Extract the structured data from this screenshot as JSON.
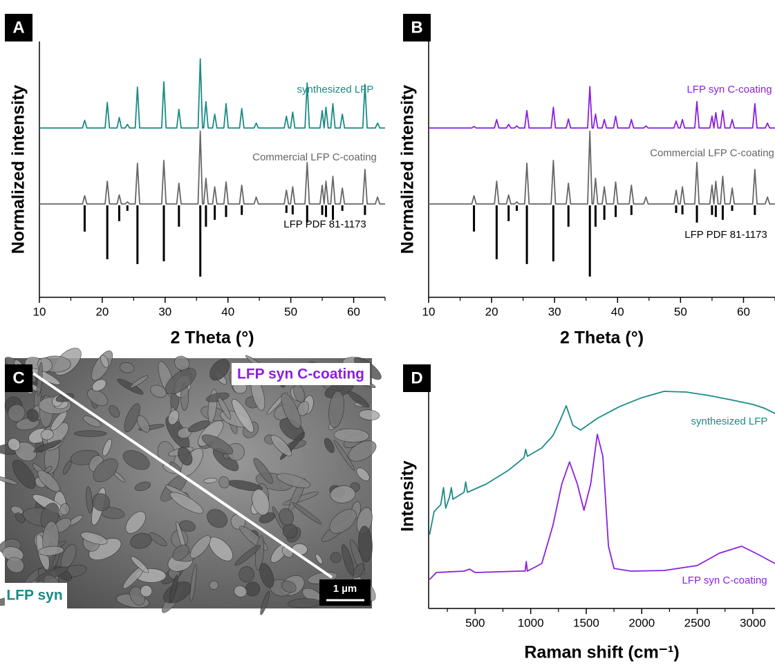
{
  "panel_labels": [
    "A",
    "B",
    "C",
    "D"
  ],
  "image": {
    "top_label": "LFP syn C-coating",
    "bottom_label": "LFP syn",
    "scale_bar": "1 µm"
  },
  "chart_data": [
    {
      "type": "line",
      "xlabel": "2 Theta (°)",
      "ylabel": "Normalized intensity",
      "xlim": [
        10,
        65
      ],
      "ylim": [
        0,
        100
      ],
      "xticks": [
        10,
        20,
        30,
        40,
        50,
        60
      ],
      "xticks_minor": [
        15,
        25,
        35,
        45,
        55,
        65
      ],
      "x": [
        10,
        16.85,
        17.2,
        17.55,
        20.45,
        20.8,
        21.15,
        22.35,
        22.7,
        23.05,
        23.65,
        24,
        24.35,
        25.25,
        25.6,
        25.95,
        29.45,
        29.8,
        30.15,
        31.85,
        32.2,
        32.55,
        35.25,
        35.6,
        35.95,
        36.15,
        36.5,
        36.85,
        37.55,
        37.9,
        38.25,
        39.35,
        39.7,
        40.05,
        41.85,
        42.2,
        42.55,
        44.15,
        44.5,
        44.85,
        48.95,
        49.3,
        49.65,
        49.95,
        50.3,
        50.65,
        52.25,
        52.6,
        52.95,
        54.65,
        55,
        55.3,
        55.6,
        55.95,
        56.35,
        56.7,
        57.05,
        57.85,
        58.2,
        58.55,
        61.45,
        61.8,
        62.15,
        63.45,
        63.8,
        64.15,
        65
      ],
      "series": [
        {
          "name": "synthesized LFP",
          "color": "#1b8a86",
          "values": [
            66.2,
            66.2,
            69.2,
            66.2,
            66.2,
            76.2,
            66.2,
            66.2,
            70.3,
            66.2,
            66.2,
            67.6,
            66.2,
            66.2,
            82.2,
            66.2,
            66.2,
            84.3,
            66.2,
            66.2,
            73.5,
            66.2,
            66.2,
            93.2,
            66.2,
            66.2,
            76.5,
            66.2,
            66.2,
            71.6,
            66.2,
            66.2,
            75.7,
            66.2,
            66.2,
            73.8,
            66.2,
            66.2,
            68.1,
            66.2,
            66.2,
            70.8,
            66.2,
            66.2,
            72.4,
            66.2,
            66.2,
            83.8,
            66.2,
            66.2,
            73.0,
            66.2,
            74.3,
            66.2,
            66.2,
            75.7,
            66.2,
            66.2,
            71.6,
            66.2,
            66.2,
            83.2,
            66.2,
            66.2,
            68.1,
            66.2,
            66.2
          ]
        },
        {
          "name": "Commercial LFP C-coating",
          "color": "#666666",
          "values": [
            36.5,
            36.5,
            39.7,
            36.5,
            36.5,
            45.4,
            36.5,
            36.5,
            40.0,
            36.5,
            36.5,
            37.3,
            36.5,
            36.5,
            52.4,
            36.5,
            36.5,
            53.5,
            36.5,
            36.5,
            44.6,
            36.5,
            36.5,
            64.9,
            36.5,
            36.5,
            46.5,
            36.5,
            36.5,
            43.2,
            36.5,
            36.5,
            45.1,
            36.5,
            36.5,
            43.8,
            36.5,
            36.5,
            39.2,
            36.5,
            36.5,
            41.9,
            36.5,
            36.5,
            43.2,
            36.5,
            36.5,
            52.7,
            36.5,
            36.5,
            43.8,
            36.5,
            45.4,
            36.5,
            36.5,
            47.3,
            36.5,
            36.5,
            42.7,
            36.5,
            36.5,
            50.0,
            36.5,
            36.5,
            39.2,
            36.5,
            36.5
          ]
        },
        {
          "name": "LFP PDF 81-1173",
          "type": "stick",
          "color": "#000000",
          "x": [
            17.2,
            20.8,
            22.7,
            24,
            25.6,
            29.8,
            32.2,
            35.6,
            36.5,
            37.9,
            39.7,
            42.2,
            49.3,
            50.3,
            52.6,
            55,
            55.6,
            56.7,
            58.2,
            61.8
          ],
          "values": [
            25.7,
            14.9,
            29.8,
            33.8,
            13.0,
            14.1,
            27.6,
            8.1,
            27.6,
            30.3,
            31.4,
            32.2,
            33.0,
            32.4,
            29.2,
            32.2,
            31.4,
            30.3,
            33.8,
            32.2
          ]
        }
      ]
    },
    {
      "type": "line",
      "xlabel": "2 Theta (°)",
      "ylabel": "Normalized intensity",
      "xlim": [
        10,
        65
      ],
      "ylim": [
        0,
        100
      ],
      "xticks": [
        10,
        20,
        30,
        40,
        50,
        60
      ],
      "xticks_minor": [
        15,
        25,
        35,
        45,
        55,
        65
      ],
      "x": [
        10,
        16.85,
        17.2,
        17.55,
        20.45,
        20.8,
        21.15,
        22.35,
        22.7,
        23.05,
        23.65,
        24,
        24.35,
        25.25,
        25.6,
        25.95,
        29.45,
        29.8,
        30.15,
        31.85,
        32.2,
        32.55,
        35.25,
        35.6,
        35.95,
        36.15,
        36.5,
        36.85,
        37.55,
        37.9,
        38.25,
        39.35,
        39.7,
        40.05,
        41.85,
        42.2,
        42.55,
        44.15,
        44.5,
        44.85,
        48.95,
        49.3,
        49.65,
        49.95,
        50.3,
        50.65,
        52.25,
        52.6,
        52.95,
        54.65,
        55,
        55.3,
        55.6,
        55.95,
        56.35,
        56.7,
        57.05,
        57.85,
        58.2,
        58.55,
        61.45,
        61.8,
        62.15,
        63.45,
        63.8,
        64.15,
        65
      ],
      "series": [
        {
          "name": "LFP syn C-coating",
          "color": "#8a1fe0",
          "values": [
            66.2,
            66.2,
            66.8,
            66.2,
            66.2,
            69.5,
            66.2,
            66.2,
            67.6,
            66.2,
            66.2,
            67.0,
            66.2,
            66.2,
            73.0,
            66.2,
            66.2,
            74.3,
            66.2,
            66.2,
            69.7,
            66.2,
            66.2,
            82.4,
            66.2,
            66.2,
            71.6,
            66.2,
            66.2,
            69.5,
            66.2,
            66.2,
            70.8,
            66.2,
            66.2,
            69.5,
            66.2,
            66.2,
            67.0,
            66.2,
            66.2,
            68.9,
            66.2,
            66.2,
            69.5,
            66.2,
            66.2,
            76.5,
            66.2,
            66.2,
            70.8,
            66.2,
            72.2,
            66.2,
            66.2,
            73.0,
            66.2,
            66.2,
            69.5,
            66.2,
            66.2,
            75.7,
            66.2,
            66.2,
            68.1,
            66.2,
            66.2
          ]
        },
        {
          "name": "Commercial LFP C-coating",
          "color": "#666666",
          "values": [
            36.5,
            36.5,
            39.7,
            36.5,
            36.5,
            45.4,
            36.5,
            36.5,
            40.0,
            36.5,
            36.5,
            37.3,
            36.5,
            36.5,
            52.4,
            36.5,
            36.5,
            53.5,
            36.5,
            36.5,
            44.6,
            36.5,
            36.5,
            64.9,
            36.5,
            36.5,
            46.5,
            36.5,
            36.5,
            43.2,
            36.5,
            36.5,
            45.1,
            36.5,
            36.5,
            43.8,
            36.5,
            36.5,
            39.2,
            36.5,
            36.5,
            41.9,
            36.5,
            36.5,
            43.2,
            36.5,
            36.5,
            52.7,
            36.5,
            36.5,
            43.8,
            36.5,
            45.4,
            36.5,
            36.5,
            47.3,
            36.5,
            36.5,
            42.7,
            36.5,
            36.5,
            50.0,
            36.5,
            36.5,
            39.2,
            36.5,
            36.5
          ]
        },
        {
          "name": "LFP PDF 81-1173",
          "type": "stick",
          "color": "#000000",
          "x": [
            17.2,
            20.8,
            22.7,
            24,
            25.6,
            29.8,
            32.2,
            35.6,
            36.5,
            37.9,
            39.7,
            42.2,
            49.3,
            50.3,
            52.6,
            55,
            55.6,
            56.7,
            58.2,
            61.8
          ],
          "values": [
            25.7,
            14.9,
            29.8,
            33.8,
            13.0,
            14.1,
            27.6,
            8.1,
            27.6,
            30.3,
            31.4,
            32.2,
            33.0,
            32.4,
            29.2,
            32.2,
            31.4,
            30.3,
            33.8,
            32.2
          ]
        }
      ]
    },
    {
      "type": "line",
      "xlabel": "Raman shift (cm⁻¹)",
      "ylabel": "Intensity",
      "xlim": [
        81,
        3200
      ],
      "ylim": [
        0,
        100
      ],
      "xticks": [
        500,
        1000,
        1500,
        2000,
        2500,
        3000
      ],
      "xticks_minor": [
        250,
        750,
        1250,
        1750,
        2250,
        2750
      ],
      "series": [
        {
          "name": "synthesized LFP",
          "color": "#1b8a86",
          "x": [
            90,
            130,
            190,
            215,
            235,
            270,
            285,
            300,
            400,
            415,
            430,
            600,
            800,
            940,
            955,
            970,
            1100,
            1200,
            1260,
            1320,
            1380,
            1450,
            1600,
            1800,
            2000,
            2200,
            2400,
            2600,
            2800,
            3000,
            3100,
            3200
          ],
          "values": [
            32.9,
            43.1,
            46.2,
            53.8,
            44.6,
            49.8,
            53.8,
            48.6,
            51.7,
            56.3,
            51.7,
            55.4,
            61.5,
            67.1,
            70.8,
            67.7,
            71.4,
            76.9,
            83.1,
            90.2,
            81.5,
            79.4,
            84.6,
            89.8,
            93.8,
            96.6,
            96.3,
            94.8,
            92.9,
            90.8,
            89.2,
            86.8
          ]
        },
        {
          "name": "LFP syn C-coating",
          "color": "#8a1fe0",
          "x": [
            90,
            150,
            400,
            450,
            500,
            900,
            950,
            960,
            970,
            1100,
            1200,
            1280,
            1350,
            1420,
            1480,
            1540,
            1600,
            1650,
            1700,
            1750,
            1900,
            2200,
            2500,
            2700,
            2900,
            3050,
            3200
          ],
          "values": [
            12.9,
            16.0,
            16.6,
            17.5,
            16.0,
            16.6,
            16.6,
            20.9,
            16.6,
            20.0,
            36.9,
            55.4,
            65.2,
            55.4,
            43.7,
            55.4,
            77.5,
            67.7,
            27.7,
            17.8,
            16.6,
            16.9,
            19.1,
            24.6,
            27.7,
            24.0,
            20.0
          ]
        }
      ]
    }
  ]
}
